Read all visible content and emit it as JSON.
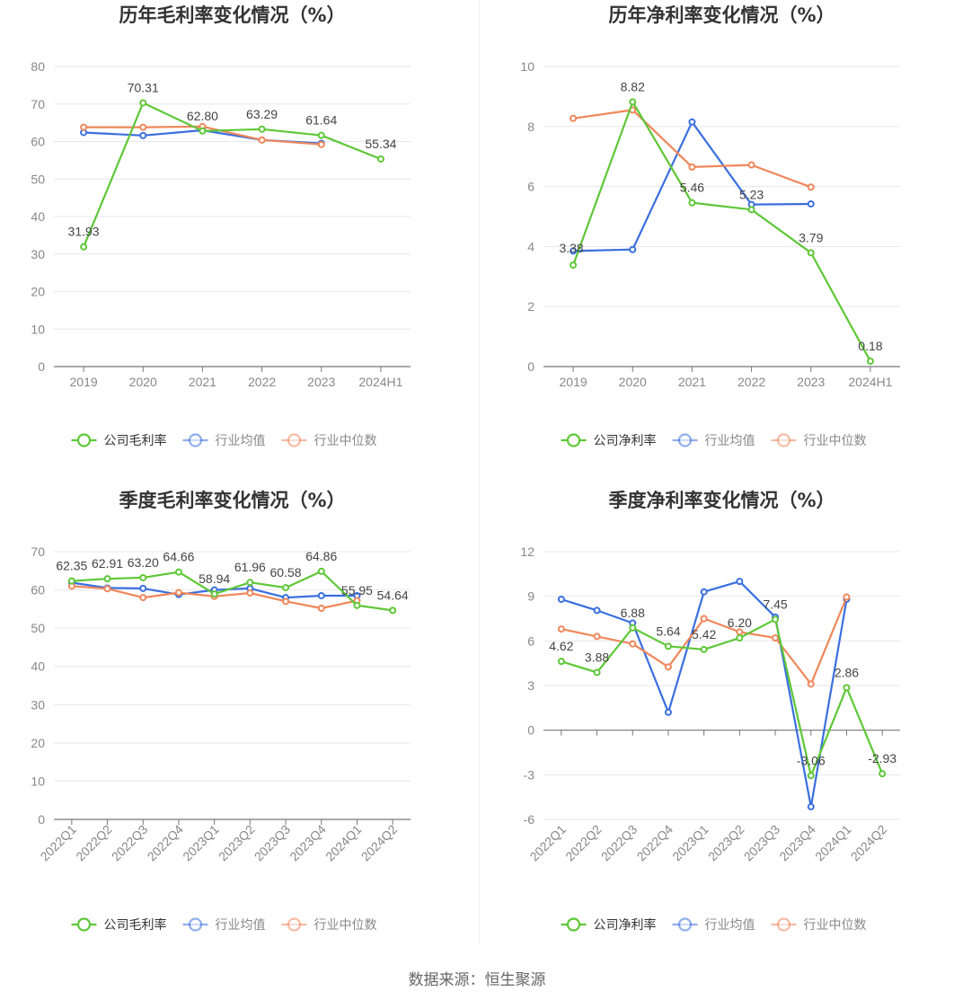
{
  "source": "数据来源：恒生聚源",
  "colors": {
    "company": "#5ec737",
    "avg": "#3a6fde",
    "median": "#f0875a"
  },
  "chart_data": [
    {
      "type": "line",
      "title": "历年毛利率变化情况（%）",
      "categories": [
        "2019",
        "2020",
        "2021",
        "2022",
        "2023",
        "2024H1"
      ],
      "ylim": [
        0,
        80
      ],
      "yticks": [
        0,
        10,
        20,
        30,
        40,
        50,
        60,
        70,
        80
      ],
      "rotate_x": false,
      "legend_position": "bottom",
      "series": [
        {
          "name": "公司毛利率",
          "color": "#5ec737",
          "labeled": true,
          "values": [
            31.93,
            70.31,
            62.8,
            63.29,
            61.64,
            55.34
          ],
          "labels": [
            "31.93",
            "70.31",
            "62.80",
            "63.29",
            "61.64",
            "55.34"
          ]
        },
        {
          "name": "行业均值",
          "color": "#3a6fde",
          "values": [
            62.4,
            61.6,
            63.0,
            60.4,
            59.5,
            null
          ]
        },
        {
          "name": "行业中位数",
          "color": "#f0875a",
          "values": [
            63.8,
            63.8,
            64.0,
            60.4,
            59.2,
            null
          ]
        }
      ]
    },
    {
      "type": "line",
      "title": "历年净利率变化情况（%）",
      "categories": [
        "2019",
        "2020",
        "2021",
        "2022",
        "2023",
        "2024H1"
      ],
      "ylim": [
        0,
        10
      ],
      "yticks": [
        0,
        2,
        4,
        6,
        8,
        10
      ],
      "rotate_x": false,
      "legend_position": "bottom",
      "series": [
        {
          "name": "公司净利率",
          "color": "#5ec737",
          "labeled": true,
          "values": [
            3.38,
            8.82,
            5.46,
            5.23,
            3.79,
            0.18
          ],
          "labels": [
            "3.38",
            "8.82",
            "5.46",
            "5.23",
            "3.79",
            "0.18"
          ]
        },
        {
          "name": "行业均值",
          "color": "#3a6fde",
          "values": [
            3.85,
            3.9,
            8.15,
            5.4,
            5.42,
            null
          ]
        },
        {
          "name": "行业中位数",
          "color": "#f0875a",
          "values": [
            8.27,
            8.55,
            6.65,
            6.72,
            5.98,
            null
          ]
        }
      ]
    },
    {
      "type": "line",
      "title": "季度毛利率变化情况（%）",
      "categories": [
        "2022Q1",
        "2022Q2",
        "2022Q3",
        "2022Q4",
        "2023Q1",
        "2023Q2",
        "2023Q3",
        "2023Q4",
        "2024Q1",
        "2024Q2"
      ],
      "ylim": [
        0,
        70
      ],
      "yticks": [
        0,
        10,
        20,
        30,
        40,
        50,
        60,
        70
      ],
      "rotate_x": true,
      "legend_position": "bottom",
      "series": [
        {
          "name": "公司毛利率",
          "color": "#5ec737",
          "labeled": true,
          "values": [
            62.35,
            62.91,
            63.2,
            64.66,
            58.94,
            61.96,
            60.58,
            64.86,
            55.95,
            54.64
          ],
          "labels": [
            "62.35",
            "62.91",
            "63.20",
            "64.66",
            "58.94",
            "61.96",
            "60.58",
            "64.86",
            "55.95",
            "54.64"
          ]
        },
        {
          "name": "行业均值",
          "color": "#3a6fde",
          "values": [
            61.9,
            60.5,
            60.4,
            58.8,
            60.0,
            60.4,
            58.0,
            58.5,
            58.5,
            null
          ]
        },
        {
          "name": "行业中位数",
          "color": "#f0875a",
          "values": [
            61.0,
            60.3,
            58.0,
            59.3,
            58.3,
            59.2,
            57.0,
            55.2,
            57.2,
            null
          ]
        }
      ]
    },
    {
      "type": "line",
      "title": "季度净利率变化情况（%）",
      "categories": [
        "2022Q1",
        "2022Q2",
        "2022Q3",
        "2022Q4",
        "2023Q1",
        "2023Q2",
        "2023Q3",
        "2023Q4",
        "2024Q1",
        "2024Q2"
      ],
      "ylim": [
        -6,
        12
      ],
      "yticks": [
        -6,
        -3,
        0,
        3,
        6,
        9,
        12
      ],
      "rotate_x": true,
      "legend_position": "bottom",
      "series": [
        {
          "name": "公司净利率",
          "color": "#5ec737",
          "labeled": true,
          "values": [
            4.62,
            3.88,
            6.88,
            5.64,
            5.42,
            6.2,
            7.45,
            -3.06,
            2.86,
            -2.93
          ],
          "labels": [
            "4.62",
            "3.88",
            "6.88",
            "5.64",
            "5.42",
            "6.20",
            "7.45",
            "-3.06",
            "2.86",
            "-2.93"
          ]
        },
        {
          "name": "行业均值",
          "color": "#3a6fde",
          "values": [
            8.8,
            8.05,
            7.2,
            1.2,
            9.3,
            10.0,
            7.6,
            -5.15,
            8.8,
            null
          ]
        },
        {
          "name": "行业中位数",
          "color": "#f0875a",
          "values": [
            6.8,
            6.3,
            5.8,
            4.25,
            7.5,
            6.6,
            6.2,
            3.1,
            8.95,
            null
          ]
        }
      ]
    }
  ]
}
